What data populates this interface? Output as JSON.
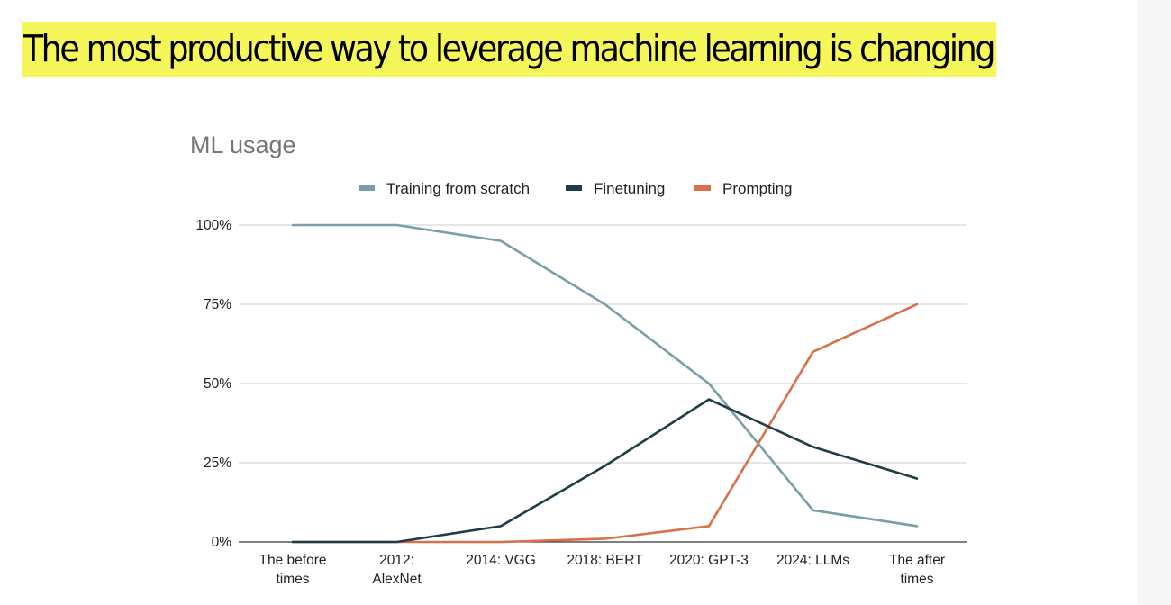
{
  "slide": {
    "headline": "The most productive way to leverage machine learning is changing"
  },
  "chart_data": {
    "type": "line",
    "title": "ML usage",
    "categories": [
      [
        "The before",
        "times"
      ],
      [
        "2012:",
        "AlexNet"
      ],
      [
        "2014: VGG"
      ],
      [
        "2018: BERT"
      ],
      [
        "2020: GPT-3"
      ],
      [
        "2024: LLMs"
      ],
      [
        "The after",
        "times"
      ]
    ],
    "y_ticks": [
      "0%",
      "25%",
      "50%",
      "75%",
      "100%"
    ],
    "ylim": [
      0,
      100
    ],
    "grid": true,
    "legend_position": "top",
    "series": [
      {
        "name": "Training from scratch",
        "color": "#7a9ea8",
        "values": [
          100,
          100,
          95,
          75,
          50,
          10,
          5
        ]
      },
      {
        "name": "Finetuning",
        "color": "#1e3d47",
        "values": [
          0,
          0,
          5,
          24,
          45,
          30,
          20
        ]
      },
      {
        "name": "Prompting",
        "color": "#d8704a",
        "values": [
          0,
          0,
          0,
          1,
          5,
          60,
          75
        ]
      }
    ]
  }
}
